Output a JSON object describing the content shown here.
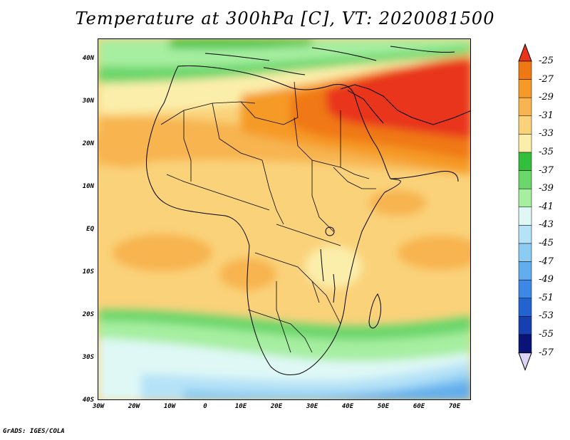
{
  "title": "Temperature at 300hPa [C], VT: 2020081500",
  "credit": "GrADS: IGES/COLA",
  "map": {
    "projection": "latlon",
    "lon_range": [
      -30,
      75
    ],
    "lat_range": [
      -40,
      45
    ],
    "lat_ticks": [
      "40N",
      "30N",
      "20N",
      "10N",
      "EQ",
      "10S",
      "20S",
      "30S",
      "40S"
    ],
    "lon_ticks": [
      "30W",
      "20W",
      "10W",
      "0",
      "10E",
      "20E",
      "30E",
      "40E",
      "50E",
      "60E",
      "70E"
    ],
    "variable": "Temperature at 300hPa",
    "units": "C",
    "valid_time": "2020081500"
  },
  "colorbar": {
    "labels": [
      "-25",
      "-27",
      "-29",
      "-31",
      "-33",
      "-35",
      "-37",
      "-39",
      "-41",
      "-43",
      "-45",
      "-47",
      "-49",
      "-51",
      "-53",
      "-55",
      "-57"
    ],
    "colors": [
      "#e8341a",
      "#f07814",
      "#f59a28",
      "#f7b450",
      "#fad27a",
      "#fbeeab",
      "#33bf3b",
      "#6bd66b",
      "#a6eea0",
      "#dff8f6",
      "#b5e2f7",
      "#8ccbf2",
      "#62aded",
      "#3d88e4",
      "#2363cf",
      "#163fb0",
      "#0a1478",
      "#dcd4f4"
    ]
  }
}
